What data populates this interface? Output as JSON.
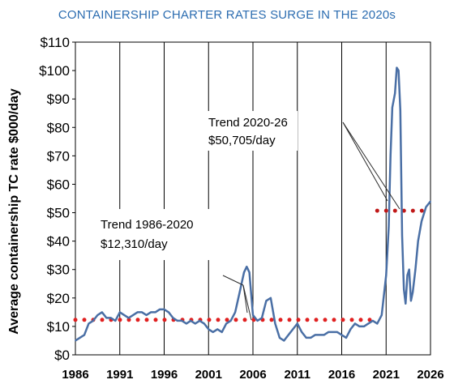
{
  "title": "CONTAINERSHIP CHARTER RATES SURGE IN THE 2020s",
  "chart_data": {
    "type": "line",
    "ylabel": "Average containership TC rate $000/day",
    "xlabel": "",
    "xlim": [
      1986,
      2026
    ],
    "ylim": [
      0,
      110
    ],
    "x_ticks": [
      "1986",
      "1991",
      "1996",
      "2001",
      "2006",
      "2011",
      "2016",
      "2021",
      "2026"
    ],
    "y_ticks": [
      "$0",
      "$10",
      "$20",
      "$30",
      "$40",
      "$50",
      "$60",
      "$70",
      "$80",
      "$90",
      "$100",
      "$110"
    ],
    "grid": "vertical lines at x ticks",
    "series": [
      {
        "color": "#4a6fa5",
        "x": [
          1986.0,
          1986.5,
          1987.0,
          1987.5,
          1988.0,
          1988.5,
          1989.0,
          1989.5,
          1990.0,
          1990.5,
          1991.0,
          1991.5,
          1992.0,
          1992.5,
          1993.0,
          1993.5,
          1994.0,
          1994.5,
          1995.0,
          1995.5,
          1996.0,
          1996.5,
          1997.0,
          1997.5,
          1998.0,
          1998.5,
          1999.0,
          1999.5,
          2000.0,
          2000.5,
          2001.0,
          2001.5,
          2002.0,
          2002.5,
          2003.0,
          2003.5,
          2004.0,
          2004.5,
          2005.0,
          2005.3,
          2005.6,
          2006.0,
          2006.5,
          2007.0,
          2007.5,
          2008.0,
          2008.5,
          2009.0,
          2009.5,
          2010.0,
          2010.5,
          2011.0,
          2011.5,
          2012.0,
          2012.5,
          2013.0,
          2013.5,
          2014.0,
          2014.5,
          2015.0,
          2015.5,
          2016.0,
          2016.5,
          2017.0,
          2017.5,
          2018.0,
          2018.5,
          2019.0,
          2019.5,
          2020.0,
          2020.5,
          2021.0,
          2021.3,
          2021.5,
          2021.7,
          2022.0,
          2022.2,
          2022.4,
          2022.6,
          2022.8,
          2023.0,
          2023.2,
          2023.4,
          2023.6,
          2023.8,
          2024.0,
          2024.3,
          2024.6,
          2025.0,
          2025.5,
          2026.0
        ],
        "y": [
          5,
          6,
          7,
          11,
          12,
          14,
          15,
          13,
          13,
          12,
          15,
          14,
          13,
          14,
          15,
          15,
          14,
          15,
          15,
          16,
          16,
          15,
          13,
          12,
          12,
          11,
          12,
          11,
          12,
          11,
          9,
          8,
          9,
          8,
          11,
          12,
          15,
          22,
          29,
          31,
          29,
          14,
          12,
          13,
          19,
          20,
          11,
          6,
          5,
          7,
          9,
          11,
          8,
          6,
          6,
          7,
          7,
          7,
          8,
          8,
          8,
          7,
          6,
          9,
          11,
          10,
          10,
          11,
          12,
          11,
          14,
          28,
          45,
          70,
          87,
          92,
          101,
          100,
          86,
          42,
          23,
          18,
          28,
          30,
          19,
          22,
          30,
          40,
          47,
          52,
          54
        ]
      },
      {
        "name": "Trend 1986-2020",
        "style": "dotted",
        "color": "#e02020",
        "x": [
          1986,
          2020
        ],
        "y": [
          12.31,
          12.31
        ]
      },
      {
        "name": "Trend 2020-26",
        "style": "dotted",
        "color": "#c01818",
        "x": [
          2020,
          2026
        ],
        "y": [
          50.705,
          50.705
        ]
      }
    ],
    "annotations": [
      {
        "line1": "Trend 2020-26",
        "line2": "$50,705/day"
      },
      {
        "line1": "Trend 1986-2020",
        "line2": "$12,310/day"
      }
    ]
  }
}
